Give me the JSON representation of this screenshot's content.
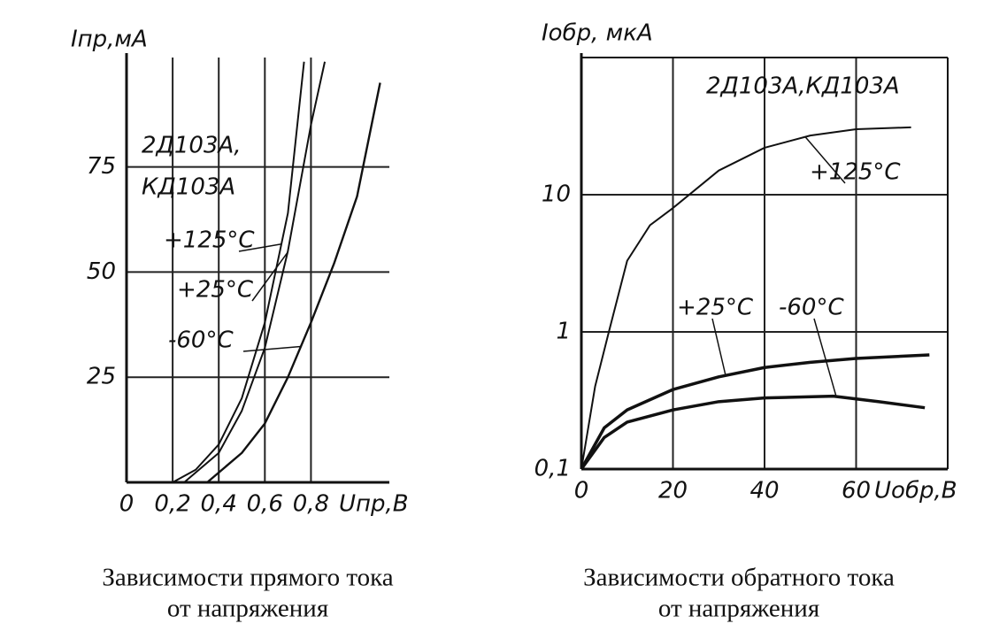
{
  "chart_data": [
    {
      "type": "line",
      "title": [
        "Зависимости прямого тока",
        "от напряжения"
      ],
      "y_label": "Iпр,мА",
      "x_label": "Uпр,В",
      "annotation": [
        "2Д103А,",
        "КД103А"
      ],
      "xlim": [
        0,
        1.14
      ],
      "ylim": [
        0,
        101
      ],
      "xticks": [
        {
          "value": 0,
          "label": "0"
        },
        {
          "value": 0.2,
          "label": "0,2"
        },
        {
          "value": 0.4,
          "label": "0,4"
        },
        {
          "value": 0.6,
          "label": "0,6"
        },
        {
          "value": 0.8,
          "label": "0,8"
        }
      ],
      "yticks": [
        25,
        50,
        75
      ],
      "grid": true,
      "log_y": false,
      "series": [
        {
          "name": "+125°C",
          "color": "#111111",
          "x": [
            0.2,
            0.3,
            0.4,
            0.5,
            0.6,
            0.7,
            0.77
          ],
          "values": [
            0,
            3,
            9,
            20,
            38,
            64,
            100
          ]
        },
        {
          "name": "+25°C",
          "color": "#111111",
          "x": [
            0.25,
            0.4,
            0.5,
            0.6,
            0.7,
            0.8,
            0.86
          ],
          "values": [
            0,
            7,
            17,
            32,
            55,
            85,
            100
          ]
        },
        {
          "name": "-60°C",
          "color": "#111111",
          "x": [
            0.35,
            0.5,
            0.6,
            0.7,
            0.8,
            0.9,
            1.0,
            1.1
          ],
          "values": [
            0,
            7,
            14,
            25,
            38,
            52,
            68,
            95
          ]
        }
      ]
    },
    {
      "type": "line",
      "title": [
        "Зависимости обратного тока",
        "от напряжения"
      ],
      "y_label": "Iобр, мкА",
      "x_label": "Uобр,В",
      "annotation": [
        "2Д103А,КД103А"
      ],
      "xlim": [
        0,
        80
      ],
      "ylim": [
        0.1,
        100
      ],
      "xticks": [
        0,
        20,
        40,
        60
      ],
      "yticks": [
        {
          "value": 0.1,
          "label": "0,1"
        },
        1,
        10
      ],
      "grid": true,
      "log_y": true,
      "series": [
        {
          "name": "+125°C",
          "color": "#111111",
          "x": [
            0,
            3,
            6,
            10,
            15,
            20,
            30,
            40,
            50,
            60,
            72
          ],
          "values": [
            0.1,
            0.4,
            1,
            3.3,
            6,
            8,
            15,
            22,
            27,
            30,
            31
          ]
        },
        {
          "name": "+25°C",
          "color": "#111111",
          "x": [
            0,
            5,
            10,
            20,
            30,
            40,
            50,
            60,
            76
          ],
          "values": [
            0.1,
            0.2,
            0.27,
            0.38,
            0.47,
            0.55,
            0.6,
            0.64,
            0.68
          ]
        },
        {
          "name": "-60°C",
          "color": "#111111",
          "x": [
            0,
            5,
            10,
            20,
            30,
            40,
            55,
            65,
            75
          ],
          "values": [
            0.1,
            0.17,
            0.22,
            0.27,
            0.31,
            0.33,
            0.34,
            0.31,
            0.28
          ]
        }
      ]
    }
  ]
}
